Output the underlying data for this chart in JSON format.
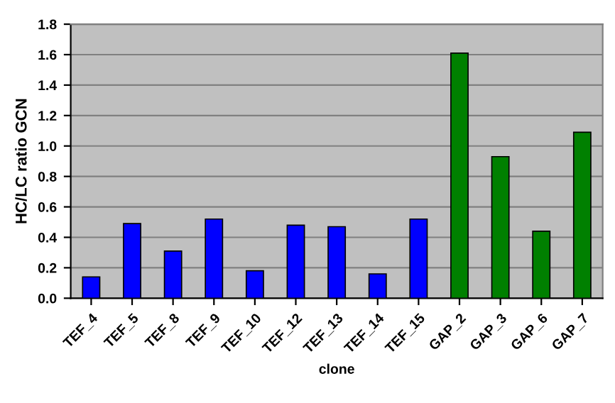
{
  "chart_data": {
    "type": "bar",
    "xlabel": "clone",
    "ylabel": "HC/LC ratio GCN",
    "categories": [
      "TEF_4",
      "TEF_5",
      "TEF_8",
      "TEF_9",
      "TEF_10",
      "TEF_12",
      "TEF_13",
      "TEF_14",
      "TEF_15",
      "GAP_2",
      "GAP_3",
      "GAP_6",
      "GAP_7"
    ],
    "values": [
      0.14,
      0.49,
      0.31,
      0.52,
      0.18,
      0.48,
      0.47,
      0.16,
      0.52,
      1.61,
      0.93,
      0.44,
      1.09
    ],
    "colors": [
      "#0000ff",
      "#0000ff",
      "#0000ff",
      "#0000ff",
      "#0000ff",
      "#0000ff",
      "#0000ff",
      "#0000ff",
      "#0000ff",
      "#008000",
      "#008000",
      "#008000",
      "#008000"
    ],
    "ylim": [
      0,
      1.8
    ],
    "yticks": [
      {
        "value": 0,
        "label": "0.0"
      },
      {
        "value": 0.2,
        "label": "0.2"
      },
      {
        "value": 0.4,
        "label": "0.4"
      },
      {
        "value": 0.6,
        "label": "0.6"
      },
      {
        "value": 0.8,
        "label": "0.8"
      },
      {
        "value": 1.0,
        "label": "1.0"
      },
      {
        "value": 1.2,
        "label": "1.2"
      },
      {
        "value": 1.4,
        "label": "1.4"
      },
      {
        "value": 1.6,
        "label": "1.6"
      },
      {
        "value": 1.8,
        "label": "1.8"
      }
    ],
    "grid": "y",
    "legend": false
  }
}
